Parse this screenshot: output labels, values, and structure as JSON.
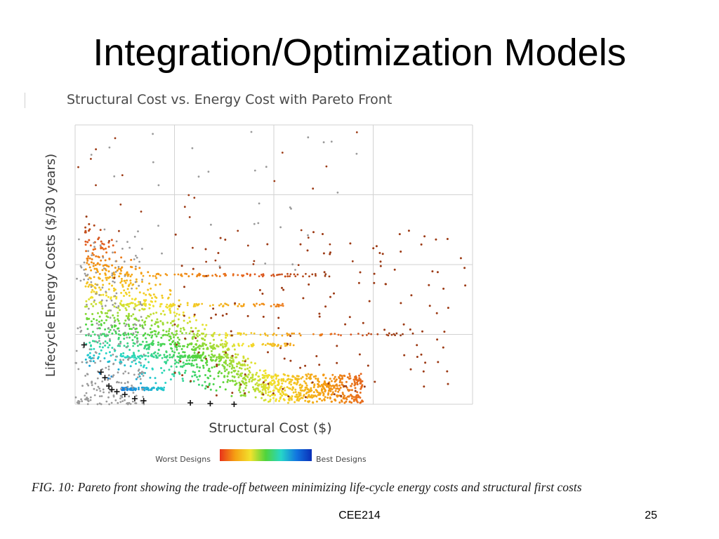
{
  "slide": {
    "title": "Integration/Optimization Models",
    "caption": "FIG. 10: Pareto front showing the trade-off between minimizing life-cycle energy costs and structural first costs",
    "footer": "CEE214",
    "page_number": "25"
  },
  "chart_data": {
    "type": "scatter",
    "title": "Structural Cost vs. Energy Cost with Pareto Front",
    "xlabel": "Structural Cost ($)",
    "ylabel": "Lifecycle Energy Costs ($/30 years)",
    "x_tick_labels": [],
    "y_tick_labels": [],
    "xlim": [
      0,
      4
    ],
    "ylim": [
      0,
      4
    ],
    "grid": true,
    "legend": {
      "low_label": "Worst Designs",
      "high_label": "Best Designs",
      "gradient_colors": [
        "#e8331a",
        "#f5a013",
        "#f2e22d",
        "#4fd43c",
        "#26d6c8",
        "#1276e0",
        "#0a2fb8"
      ]
    },
    "colors": {
      "unranked": "#9a9a9a",
      "pareto_marker": "#111111",
      "worst": "#9c3a14"
    },
    "series": [],
    "pareto_front": [
      {
        "x": 0.09,
        "y": 0.85
      },
      {
        "x": 0.26,
        "y": 0.46
      },
      {
        "x": 0.3,
        "y": 0.38
      },
      {
        "x": 0.34,
        "y": 0.26
      },
      {
        "x": 0.37,
        "y": 0.21
      },
      {
        "x": 0.42,
        "y": 0.18
      },
      {
        "x": 0.5,
        "y": 0.14
      },
      {
        "x": 0.6,
        "y": 0.08
      },
      {
        "x": 0.69,
        "y": 0.05
      },
      {
        "x": 1.16,
        "y": 0.02
      },
      {
        "x": 1.36,
        "y": 0.01
      },
      {
        "x": 1.6,
        "y": 0.0
      }
    ]
  }
}
